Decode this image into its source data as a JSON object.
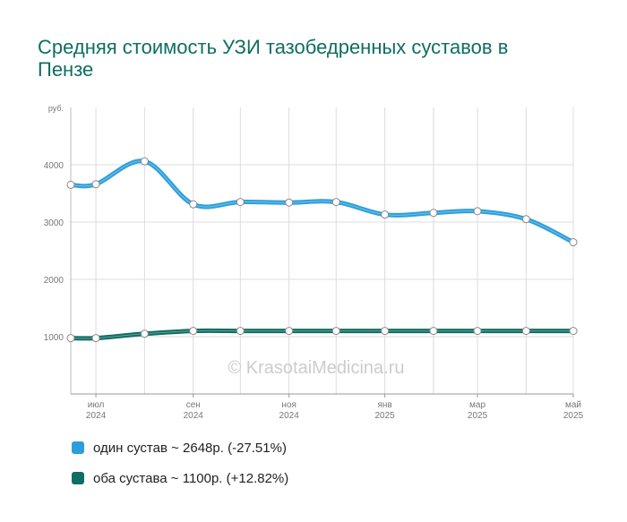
{
  "chart_data": {
    "type": "line",
    "title": "Средняя стоимость УЗИ тазобедренных суставов в Пензе",
    "y_unit_label": "руб.",
    "watermark": "© KrasotaiMedicina.ru",
    "ylim": [
      0,
      5000
    ],
    "yticks": [
      1000,
      2000,
      3000,
      4000
    ],
    "grid": true,
    "legend_position": "bottom-left",
    "x_ticks": [
      {
        "month": "2024-07",
        "label1": "июл",
        "label2": "2024"
      },
      {
        "month": "2024-09",
        "label1": "сен",
        "label2": "2024"
      },
      {
        "month": "2024-11",
        "label1": "ноя",
        "label2": "2024"
      },
      {
        "month": "2025-01",
        "label1": "янв",
        "label2": "2025"
      },
      {
        "month": "2025-03",
        "label1": "мар",
        "label2": "2025"
      },
      {
        "month": "2025-05",
        "label1": "май",
        "label2": "2025"
      }
    ],
    "x": [
      "2024-06-15",
      "2024-07-01",
      "2024-08-01",
      "2024-09-01",
      "2024-10-01",
      "2024-11-01",
      "2024-12-01",
      "2025-01-01",
      "2025-02-01",
      "2025-03-01",
      "2025-04-01",
      "2025-05-01"
    ],
    "series": [
      {
        "name": "один сустав",
        "legend": "один сустав ~ 2648р. (-27.51%)",
        "color": "#2b9fdc",
        "values": [
          3650,
          3660,
          4060,
          3310,
          3350,
          3340,
          3350,
          3130,
          3160,
          3190,
          3050,
          2648
        ]
      },
      {
        "name": "оба сустава",
        "legend": "оба сустава ~ 1100р. (+12.82%)",
        "color": "#0f6e62",
        "values": [
          975,
          975,
          1050,
          1100,
          1100,
          1100,
          1100,
          1100,
          1100,
          1100,
          1100,
          1100
        ]
      }
    ]
  }
}
